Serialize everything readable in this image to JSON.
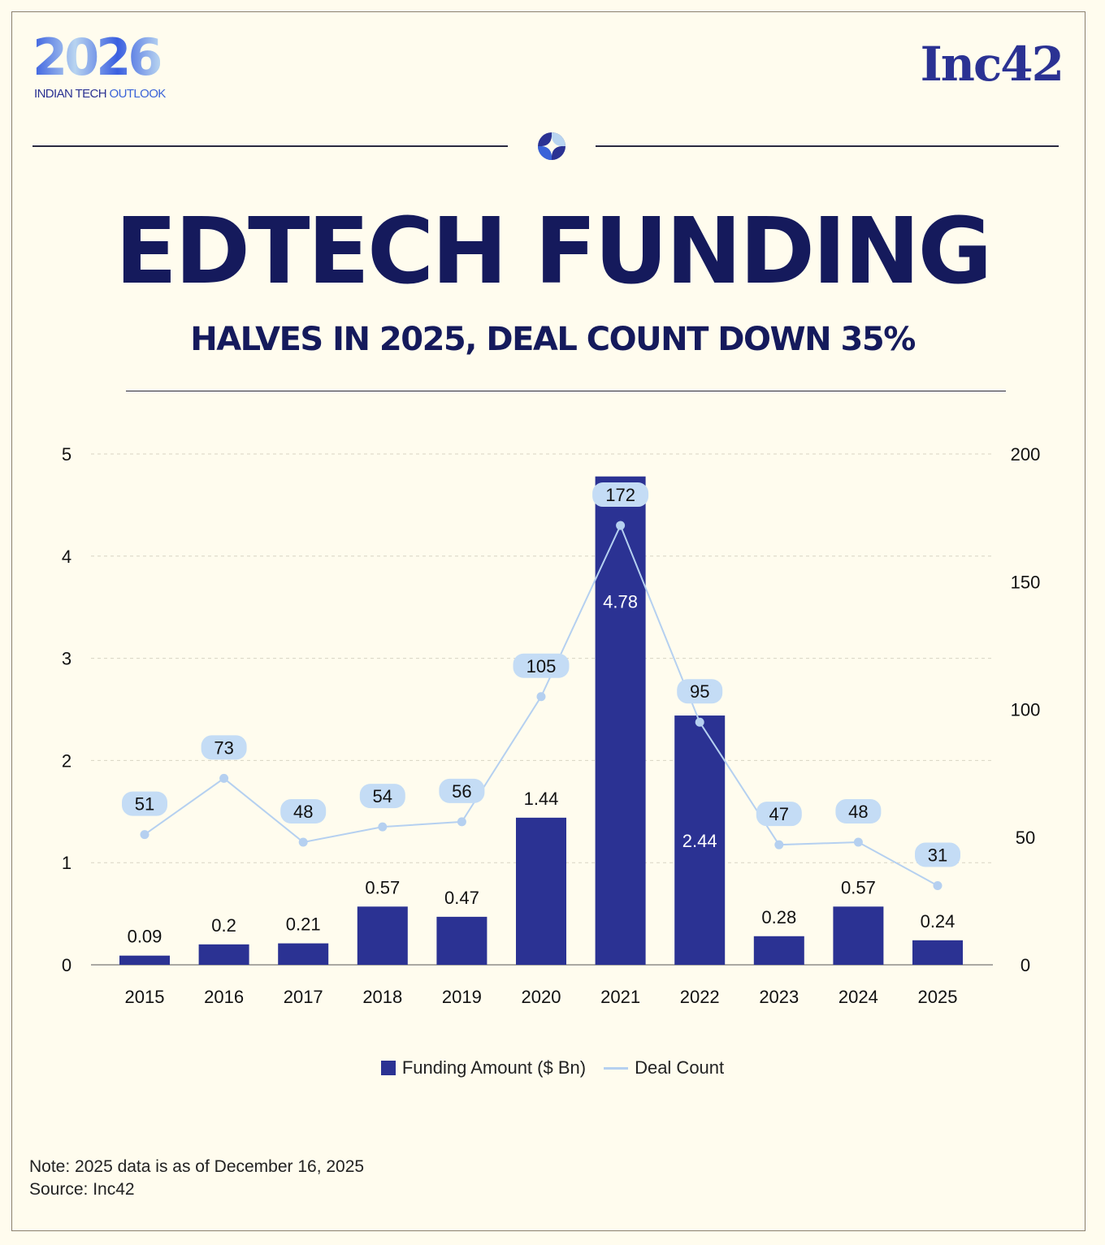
{
  "branding": {
    "event_logo": "2026",
    "event_tag_a": "INDIAN TECH",
    "event_tag_b": "OUTLOOK",
    "publisher": "Inc42"
  },
  "header": {
    "title": "EDTECH FUNDING",
    "subtitle": "HALVES IN 2025, DEAL COUNT DOWN 35%"
  },
  "colors": {
    "bar": "#2b3293",
    "line": "#b5d0f0",
    "pill": "#c4dcf5",
    "title": "#151a5c",
    "background": "#fffcee"
  },
  "chart_data": {
    "type": "bar",
    "categories": [
      "2015",
      "2016",
      "2017",
      "2018",
      "2019",
      "2020",
      "2021",
      "2022",
      "2023",
      "2024",
      "2025"
    ],
    "series": [
      {
        "name": "Funding Amount ($ Bn)",
        "type": "bar",
        "axis": "left",
        "values": [
          0.09,
          0.2,
          0.21,
          0.57,
          0.47,
          1.44,
          4.78,
          2.44,
          0.28,
          0.57,
          0.24
        ]
      },
      {
        "name": "Deal Count",
        "type": "line",
        "axis": "right",
        "values": [
          51,
          73,
          48,
          54,
          56,
          105,
          172,
          95,
          47,
          48,
          31
        ]
      }
    ],
    "y_left": {
      "ticks": [
        "0",
        "1",
        "2",
        "3",
        "4",
        "5"
      ],
      "ylim": [
        0,
        5
      ]
    },
    "y_right": {
      "ticks": [
        "0",
        "50",
        "100",
        "150",
        "200"
      ],
      "ylim": [
        0,
        200
      ]
    },
    "grid": true,
    "legend": "bottom"
  },
  "footer": {
    "note": "Note: 2025 data is as of December 16, 2025",
    "source": "Source: Inc42"
  }
}
